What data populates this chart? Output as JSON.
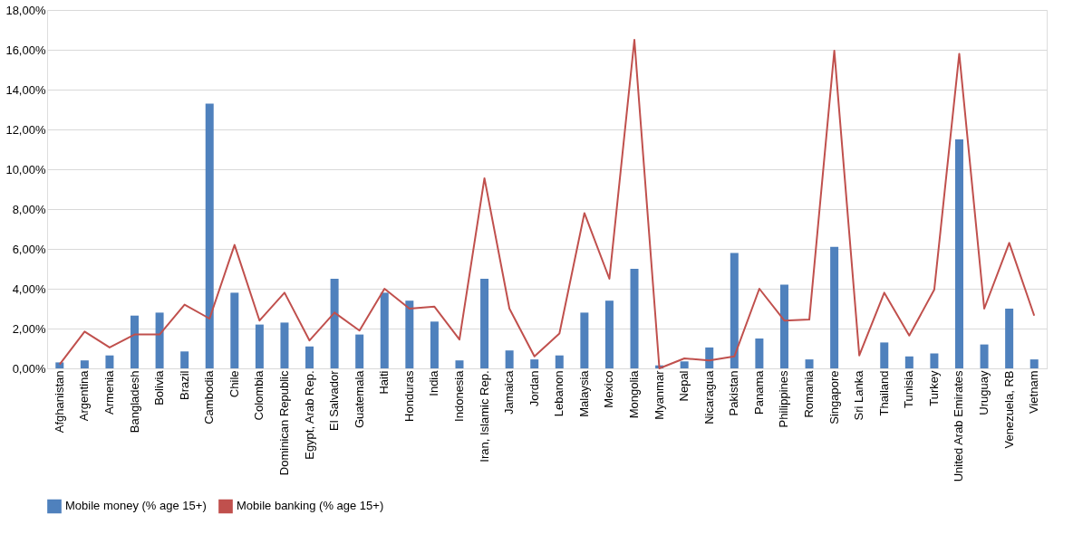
{
  "chart_data": {
    "type": "bar",
    "categories": [
      "Afghanistan",
      "Argentina",
      "Armenia",
      "Bangladesh",
      "Bolivia",
      "Brazil",
      "Cambodia",
      "Chile",
      "Colombia",
      "Dominican Republic",
      "Egypt, Arab Rep.",
      "El Salvador",
      "Guatemala",
      "Haiti",
      "Honduras",
      "India",
      "Indonesia",
      "Iran, Islamic Rep.",
      "Jamaica",
      "Jordan",
      "Lebanon",
      "Malaysia",
      "Mexico",
      "Mongolia",
      "Myanmar",
      "Nepal",
      "Nicaragua",
      "Pakistan",
      "Panama",
      "Philippines",
      "Romania",
      "Singapore",
      "Sri Lanka",
      "Thailand",
      "Tunisia",
      "Turkey",
      "United Arab Emirates",
      "Uruguay",
      "Venezuela, RB",
      "Vietnam"
    ],
    "series": [
      {
        "name": "Mobile money (% age 15+)",
        "color": "#4f81bd",
        "values": [
          0.3,
          0.4,
          0.65,
          2.65,
          2.8,
          0.85,
          13.3,
          3.8,
          2.2,
          2.3,
          1.1,
          4.5,
          1.7,
          3.8,
          3.4,
          2.35,
          0.4,
          4.5,
          0.9,
          0.45,
          0.65,
          2.8,
          3.4,
          5.0,
          0.15,
          0.35,
          1.05,
          5.8,
          1.5,
          4.2,
          0.45,
          6.1,
          null,
          1.3,
          0.6,
          0.75,
          11.5,
          1.2,
          3.0,
          0.45
        ]
      },
      {
        "name": "Mobile banking (% age 15+)",
        "type": "line",
        "color": "#c0504d",
        "values": [
          0.2,
          1.85,
          1.05,
          1.7,
          1.7,
          3.2,
          2.5,
          6.2,
          2.4,
          3.8,
          1.4,
          2.8,
          1.9,
          4.0,
          3.0,
          3.1,
          1.45,
          9.55,
          3.0,
          0.6,
          1.75,
          7.8,
          4.5,
          16.5,
          0.0,
          0.5,
          0.4,
          0.6,
          4.0,
          2.4,
          2.45,
          15.95,
          0.65,
          3.8,
          1.65,
          3.95,
          15.8,
          3.0,
          6.3,
          2.65
        ]
      }
    ],
    "ylim": [
      0,
      18
    ],
    "yticks": [
      {
        "value": 0,
        "label": "0,00%"
      },
      {
        "value": 2,
        "label": "2,00%"
      },
      {
        "value": 4,
        "label": "4,00%"
      },
      {
        "value": 6,
        "label": "6,00%"
      },
      {
        "value": 8,
        "label": "8,00%"
      },
      {
        "value": 10,
        "label": "10,00%"
      },
      {
        "value": 12,
        "label": "12,00%"
      },
      {
        "value": 14,
        "label": "14,00%"
      },
      {
        "value": 16,
        "label": "16,00%"
      },
      {
        "value": 18,
        "label": "18,00%"
      }
    ],
    "grid": "y",
    "legend": "bottom"
  }
}
